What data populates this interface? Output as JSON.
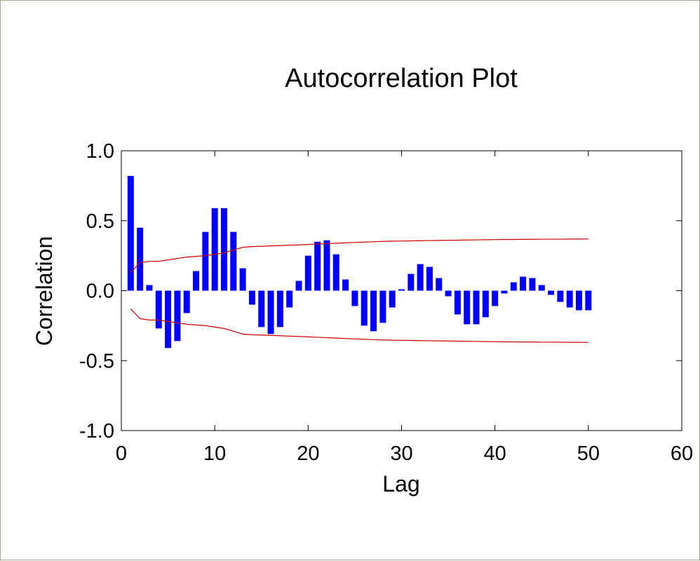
{
  "chart_data": {
    "type": "bar",
    "title": "Autocorrelation Plot",
    "xlabel": "Lag",
    "ylabel": "Correlation",
    "xlim": [
      0,
      60
    ],
    "ylim": [
      -1.0,
      1.0
    ],
    "x_ticks": [
      "0",
      "10",
      "20",
      "30",
      "40",
      "50",
      "60"
    ],
    "y_ticks": [
      "1.0",
      "0.5",
      "0.0",
      "-0.5",
      "-1.0"
    ],
    "grid": false,
    "legend": "none",
    "bar_color": "#0000ff",
    "band_color": "#cc0000",
    "series": [
      {
        "x": [
          1,
          2,
          3,
          4,
          5,
          6,
          7,
          8,
          9,
          10,
          11,
          12,
          13,
          14,
          15,
          16,
          17,
          18,
          19,
          20,
          21,
          22,
          23,
          24,
          25,
          26,
          27,
          28,
          29,
          30,
          31,
          32,
          33,
          34,
          35,
          36,
          37,
          38,
          39,
          40,
          41,
          42,
          43,
          44,
          45,
          46,
          47,
          48,
          49,
          50
        ],
        "values": [
          0.82,
          0.45,
          0.04,
          -0.27,
          -0.41,
          -0.36,
          -0.16,
          0.14,
          0.42,
          0.59,
          0.59,
          0.42,
          0.16,
          -0.1,
          -0.26,
          -0.31,
          -0.26,
          -0.12,
          0.07,
          0.25,
          0.35,
          0.36,
          0.26,
          0.08,
          -0.11,
          -0.25,
          -0.29,
          -0.23,
          -0.12,
          0.01,
          0.12,
          0.19,
          0.17,
          0.09,
          -0.04,
          -0.17,
          -0.24,
          -0.24,
          -0.19,
          -0.11,
          -0.02,
          0.06,
          0.1,
          0.09,
          0.04,
          -0.03,
          -0.08,
          -0.12,
          -0.14,
          -0.14
        ]
      }
    ],
    "confidence_band": {
      "x": [
        1,
        2,
        3,
        4,
        5,
        6,
        7,
        8,
        9,
        10,
        11,
        12,
        13,
        14,
        15,
        16,
        17,
        18,
        19,
        20,
        21,
        22,
        23,
        24,
        25,
        26,
        27,
        28,
        29,
        30,
        31,
        32,
        33,
        34,
        35,
        36,
        37,
        38,
        39,
        40,
        41,
        42,
        43,
        44,
        45,
        46,
        47,
        48,
        49,
        50
      ],
      "upper": [
        0.13,
        0.2,
        0.21,
        0.21,
        0.22,
        0.23,
        0.24,
        0.245,
        0.25,
        0.26,
        0.27,
        0.29,
        0.31,
        0.315,
        0.317,
        0.32,
        0.322,
        0.325,
        0.327,
        0.33,
        0.333,
        0.336,
        0.339,
        0.342,
        0.345,
        0.347,
        0.35,
        0.352,
        0.354,
        0.355,
        0.356,
        0.357,
        0.358,
        0.359,
        0.36,
        0.361,
        0.362,
        0.363,
        0.364,
        0.365,
        0.366,
        0.366,
        0.367,
        0.367,
        0.368,
        0.368,
        0.368,
        0.369,
        0.369,
        0.37
      ],
      "lower": [
        -0.13,
        -0.2,
        -0.21,
        -0.21,
        -0.22,
        -0.23,
        -0.24,
        -0.245,
        -0.25,
        -0.26,
        -0.27,
        -0.29,
        -0.31,
        -0.315,
        -0.317,
        -0.32,
        -0.322,
        -0.325,
        -0.327,
        -0.33,
        -0.333,
        -0.336,
        -0.339,
        -0.342,
        -0.345,
        -0.347,
        -0.35,
        -0.352,
        -0.354,
        -0.355,
        -0.356,
        -0.357,
        -0.358,
        -0.359,
        -0.36,
        -0.361,
        -0.362,
        -0.363,
        -0.364,
        -0.365,
        -0.366,
        -0.366,
        -0.367,
        -0.367,
        -0.368,
        -0.368,
        -0.368,
        -0.369,
        -0.369,
        -0.37
      ]
    }
  }
}
